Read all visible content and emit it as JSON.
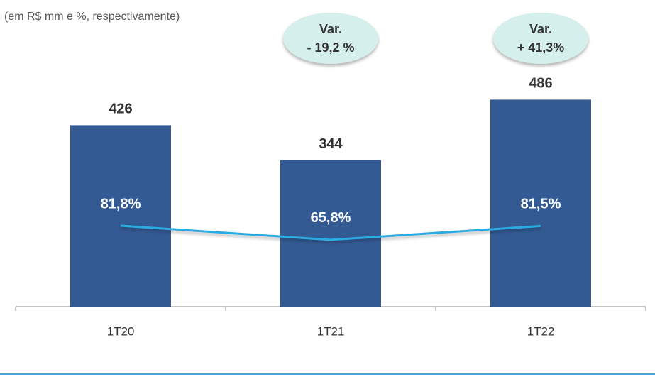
{
  "chart_data": {
    "type": "bar",
    "subtitle": "(em R$ mm e %, respectivamente)",
    "categories": [
      "1T20",
      "1T21",
      "1T22"
    ],
    "series": [
      {
        "type": "bar",
        "color": "#345a93",
        "values": [
          426,
          344,
          486
        ]
      },
      {
        "type": "line",
        "axis": "y2",
        "color": "#29abe2",
        "values": [
          81.8,
          65.8,
          81.5
        ],
        "value_labels": [
          "81,8%",
          "65,8%",
          "81,5%"
        ]
      }
    ],
    "ylim": [
      0,
      600
    ],
    "y2lim": [
      -10,
      280
    ],
    "annotations": [
      {
        "category": "1T21",
        "lines": [
          "Var.",
          "- 19,2 %"
        ]
      },
      {
        "category": "1T22",
        "lines": [
          "Var.",
          "+ 41,3%"
        ]
      }
    ]
  }
}
